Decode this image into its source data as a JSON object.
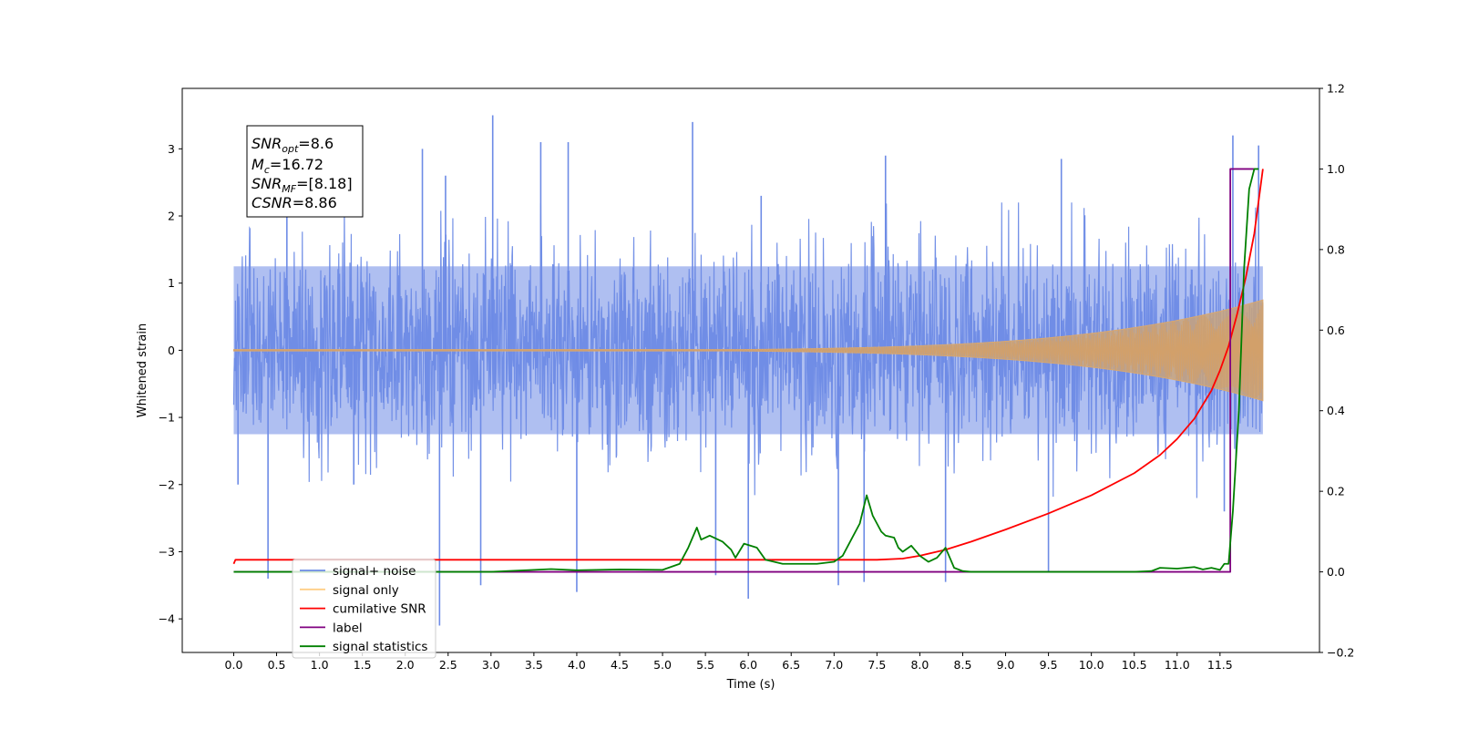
{
  "chart_data": {
    "type": "line",
    "xlabel": "Time (s)",
    "ylabel": "Whitened strain",
    "xlim": [
      -0.6,
      12.66
    ],
    "ylim": [
      -4.5,
      3.9
    ],
    "y2lim": [
      -0.2,
      1.2
    ],
    "x_ticks": [
      0.0,
      0.5,
      1.0,
      1.5,
      2.0,
      2.5,
      3.0,
      3.5,
      4.0,
      4.5,
      5.0,
      5.5,
      6.0,
      6.5,
      7.0,
      7.5,
      8.0,
      8.5,
      9.0,
      9.5,
      10.0,
      10.5,
      11.0,
      11.5
    ],
    "x_tick_labels": [
      "0.0",
      "0.5",
      "1.0",
      "1.5",
      "2.0",
      "2.5",
      "3.0",
      "3.5",
      "4.0",
      "4.5",
      "5.0",
      "5.5",
      "6.0",
      "6.5",
      "7.0",
      "7.5",
      "8.0",
      "8.5",
      "9.0",
      "9.5",
      "10.0",
      "10.5",
      "11.0",
      "11.5"
    ],
    "y_ticks": [
      -4,
      -3,
      -2,
      -1,
      0,
      1,
      2,
      3
    ],
    "y_tick_labels": [
      "−4",
      "−3",
      "−2",
      "−1",
      "0",
      "1",
      "2",
      "3"
    ],
    "y2_ticks": [
      -0.2,
      0.0,
      0.2,
      0.4,
      0.6,
      0.8,
      1.0,
      1.2
    ],
    "y2_tick_labels": [
      "−0.2",
      "0.0",
      "0.2",
      "0.4",
      "0.6",
      "0.8",
      "1.0",
      "1.2"
    ],
    "grid": false,
    "legend_position": "bottom-left",
    "annotation": {
      "snr_opt": {
        "base": "SNR",
        "sub": "opt",
        "value": "=8.6"
      },
      "mc": {
        "base": "M",
        "sub": "c",
        "value": "=16.72"
      },
      "snr_mf": {
        "base": "SNR",
        "sub": "MF",
        "value": "=[8.18]"
      },
      "csnr": {
        "base": "CSNR",
        "value": "=8.86"
      }
    },
    "series": [
      {
        "name": "signal+ noise",
        "color": "#6d8be6",
        "axis": "left",
        "kind": "noise",
        "x_range": [
          0.0,
          12.0
        ],
        "envelope": 2.2,
        "spike_peaks": [
          [
            0.05,
            -2.0
          ],
          [
            0.4,
            -3.4
          ],
          [
            0.62,
            2.6
          ],
          [
            1.4,
            -2.0
          ],
          [
            2.2,
            3.0
          ],
          [
            2.4,
            -4.1
          ],
          [
            2.47,
            2.6
          ],
          [
            2.88,
            -3.5
          ],
          [
            3.02,
            3.5
          ],
          [
            3.58,
            3.1
          ],
          [
            3.9,
            3.1
          ],
          [
            4.0,
            -3.6
          ],
          [
            5.35,
            3.4
          ],
          [
            5.62,
            -3.35
          ],
          [
            6.0,
            -3.7
          ],
          [
            6.15,
            2.3
          ],
          [
            7.05,
            -3.5
          ],
          [
            7.35,
            -3.45
          ],
          [
            7.6,
            2.9
          ],
          [
            8.3,
            -3.45
          ],
          [
            9.5,
            -3.3
          ],
          [
            9.65,
            2.85
          ],
          [
            11.55,
            -2.4
          ],
          [
            11.65,
            3.2
          ],
          [
            11.95,
            3.05
          ]
        ]
      },
      {
        "name": "signal only",
        "color": "#ffc266",
        "axis": "left",
        "kind": "chirp",
        "x_range": [
          0.0,
          12.0
        ],
        "final_amplitude": 0.75
      },
      {
        "name": "cumilative SNR",
        "color": "#ff0000",
        "axis": "right",
        "x": [
          0.0,
          0.02,
          1.0,
          2.0,
          3.0,
          4.0,
          5.0,
          6.0,
          7.0,
          7.5,
          7.8,
          8.0,
          8.3,
          8.6,
          9.0,
          9.5,
          10.0,
          10.5,
          10.8,
          11.0,
          11.2,
          11.4,
          11.5,
          11.6,
          11.7,
          11.8,
          11.9,
          12.0
        ],
        "y": [
          0.02,
          0.03,
          0.03,
          0.03,
          0.03,
          0.03,
          0.03,
          0.03,
          0.03,
          0.03,
          0.033,
          0.04,
          0.055,
          0.075,
          0.105,
          0.145,
          0.19,
          0.245,
          0.29,
          0.33,
          0.38,
          0.45,
          0.5,
          0.56,
          0.64,
          0.73,
          0.84,
          1.0
        ]
      },
      {
        "name": "label",
        "color": "#800080",
        "axis": "right",
        "x": [
          0.0,
          11.55,
          11.62,
          11.62,
          11.9,
          11.9
        ],
        "y": [
          0.0,
          0.0,
          0.0,
          1.0,
          1.0,
          1.0
        ]
      },
      {
        "name": "signal statistics",
        "color": "#008000",
        "axis": "right",
        "x": [
          0.0,
          3.0,
          3.5,
          3.7,
          4.0,
          4.5,
          5.0,
          5.2,
          5.3,
          5.4,
          5.45,
          5.55,
          5.7,
          5.8,
          5.85,
          5.95,
          6.1,
          6.2,
          6.4,
          6.6,
          6.8,
          7.0,
          7.1,
          7.2,
          7.3,
          7.38,
          7.45,
          7.5,
          7.55,
          7.6,
          7.7,
          7.75,
          7.8,
          7.9,
          8.0,
          8.1,
          8.2,
          8.3,
          8.4,
          8.5,
          8.6,
          9.0,
          10.0,
          10.5,
          10.7,
          10.8,
          11.0,
          11.2,
          11.3,
          11.4,
          11.5,
          11.55,
          11.6,
          11.65,
          11.72,
          11.78,
          11.84,
          11.9,
          11.95
        ],
        "y": [
          0.0,
          0.0,
          0.005,
          0.007,
          0.004,
          0.006,
          0.005,
          0.02,
          0.06,
          0.11,
          0.08,
          0.09,
          0.075,
          0.055,
          0.035,
          0.07,
          0.06,
          0.03,
          0.02,
          0.02,
          0.02,
          0.025,
          0.04,
          0.08,
          0.12,
          0.19,
          0.14,
          0.12,
          0.1,
          0.09,
          0.085,
          0.06,
          0.05,
          0.065,
          0.04,
          0.025,
          0.035,
          0.06,
          0.01,
          0.002,
          0.0,
          0.0,
          0.0,
          0.0,
          0.002,
          0.01,
          0.008,
          0.012,
          0.006,
          0.01,
          0.005,
          0.02,
          0.02,
          0.15,
          0.4,
          0.75,
          0.95,
          1.0,
          1.0
        ]
      }
    ]
  }
}
